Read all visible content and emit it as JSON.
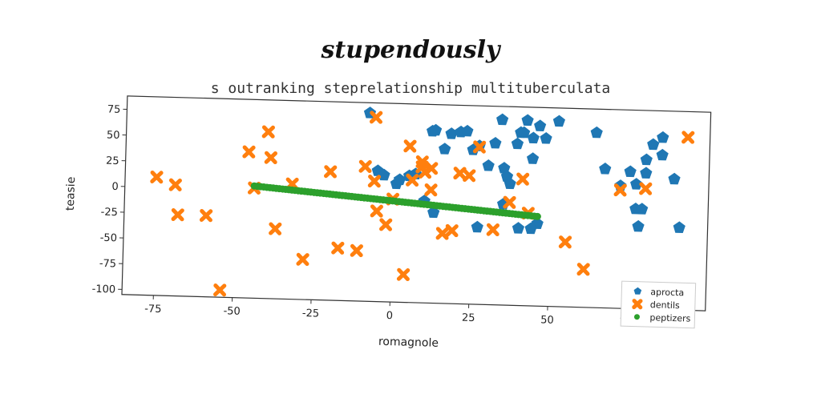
{
  "header": {
    "supertitle": "stupendously",
    "plot_title": "s outranking steprelationship multituberculata"
  },
  "colors": {
    "aprocta": "#1f77b4",
    "dentils": "#ff7f0e",
    "peptizers": "#2ca02c",
    "axes": "#333333",
    "background": "#ffffff"
  },
  "chart_data": {
    "type": "scatter",
    "title": "s outranking steprelationship multituberculata",
    "xlabel": "romagnole",
    "ylabel": "teasie",
    "xlim": [
      -85,
      100
    ],
    "ylim": [
      -105,
      88
    ],
    "xticks": [
      -75,
      -50,
      -25,
      0,
      25,
      50,
      75
    ],
    "yticks": [
      -100,
      -75,
      -50,
      -25,
      0,
      25,
      50,
      75
    ],
    "grid": false,
    "legend_position": "lower-right",
    "series": [
      {
        "name": "aprocta",
        "marker": "pentagon",
        "color": "#1f77b4",
        "points": [
          [
            -8,
            78
          ],
          [
            -5,
            22
          ],
          [
            -3,
            18
          ],
          [
            1,
            10
          ],
          [
            2,
            14
          ],
          [
            5,
            18
          ],
          [
            7,
            20
          ],
          [
            12,
            62
          ],
          [
            13,
            63
          ],
          [
            16,
            45
          ],
          [
            18,
            60
          ],
          [
            21,
            62
          ],
          [
            23,
            63
          ],
          [
            25,
            45
          ],
          [
            27,
            49
          ],
          [
            30,
            30
          ],
          [
            32,
            52
          ],
          [
            34,
            75
          ],
          [
            35,
            28
          ],
          [
            36,
            20
          ],
          [
            37,
            13
          ],
          [
            39,
            52
          ],
          [
            40,
            63
          ],
          [
            41,
            63
          ],
          [
            42,
            75
          ],
          [
            44,
            58
          ],
          [
            44,
            38
          ],
          [
            46,
            70
          ],
          [
            48,
            58
          ],
          [
            52,
            75
          ],
          [
            46,
            -25
          ],
          [
            44,
            -30
          ],
          [
            40,
            -30
          ],
          [
            35,
            -7
          ],
          [
            27,
            -30
          ],
          [
            13,
            -17
          ],
          [
            10,
            -6
          ],
          [
            64,
            65
          ],
          [
            67,
            30
          ],
          [
            72,
            14
          ],
          [
            75,
            28
          ],
          [
            77,
            16
          ],
          [
            80,
            27
          ],
          [
            82,
            55
          ],
          [
            85,
            45
          ],
          [
            85,
            62
          ],
          [
            89,
            22
          ],
          [
            91,
            -25
          ],
          [
            80,
            40
          ],
          [
            78,
            -25
          ],
          [
            77,
            -8
          ],
          [
            79,
            -8
          ]
        ]
      },
      {
        "name": "dentils",
        "marker": "x",
        "color": "#ff7f0e",
        "points": [
          [
            -75,
            10
          ],
          [
            -69,
            3
          ],
          [
            -68,
            -26
          ],
          [
            -59,
            -26
          ],
          [
            -54,
            -98
          ],
          [
            -46,
            37
          ],
          [
            -44,
            2
          ],
          [
            -40,
            57
          ],
          [
            -39,
            32
          ],
          [
            -37,
            -37
          ],
          [
            -32,
            7
          ],
          [
            -28,
            -66
          ],
          [
            -20,
            20
          ],
          [
            -17,
            -54
          ],
          [
            -11,
            -56
          ],
          [
            -9,
            26
          ],
          [
            -6,
            12
          ],
          [
            -5,
            -17
          ],
          [
            -2,
            -30
          ],
          [
            0,
            -5
          ],
          [
            4,
            -78
          ],
          [
            5,
            47
          ],
          [
            6,
            14
          ],
          [
            9,
            27
          ],
          [
            9,
            32
          ],
          [
            10,
            22
          ],
          [
            12,
            26
          ],
          [
            12,
            5
          ],
          [
            16,
            -37
          ],
          [
            19,
            -34
          ],
          [
            21,
            22
          ],
          [
            24,
            20
          ],
          [
            27,
            48
          ],
          [
            32,
            -32
          ],
          [
            37,
            -5
          ],
          [
            41,
            18
          ],
          [
            43,
            -15
          ],
          [
            55,
            -42
          ],
          [
            61,
            -68
          ],
          [
            72,
            10
          ],
          [
            80,
            12
          ],
          [
            93,
            63
          ],
          [
            -6,
            74
          ]
        ]
      },
      {
        "name": "peptizers",
        "marker": "circle",
        "color": "#2ca02c",
        "line": {
          "x_start": -44,
          "y_start": 4,
          "x_end": 46,
          "y_end": -18
        }
      }
    ]
  },
  "legend": {
    "entries": [
      "aprocta",
      "dentils",
      "peptizers"
    ]
  }
}
